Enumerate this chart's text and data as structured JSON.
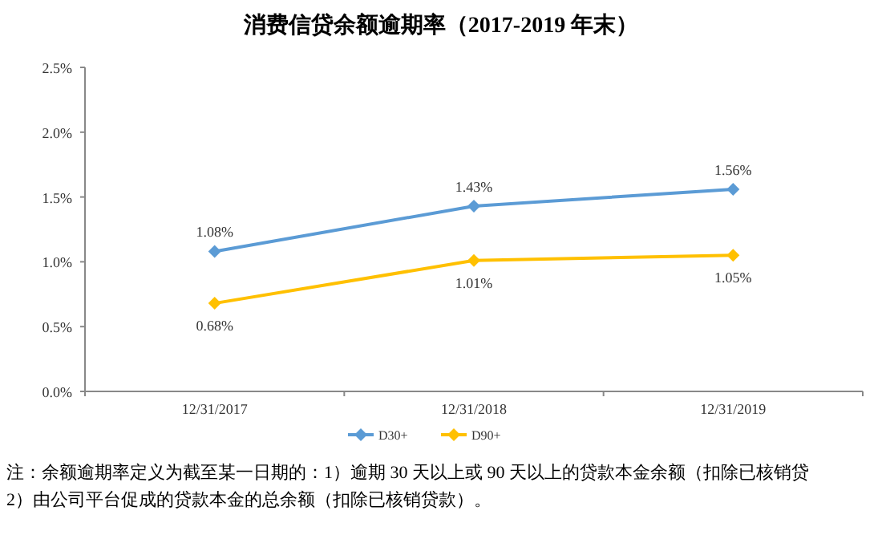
{
  "chart_data": {
    "type": "line",
    "title": "消费信贷余额逾期率（2017-2019 年末）",
    "categories": [
      "12/31/2017",
      "12/31/2018",
      "12/31/2019"
    ],
    "series": [
      {
        "name": "D30+",
        "color": "#5b9bd5",
        "values": [
          1.08,
          1.43,
          1.56
        ],
        "value_labels": [
          "1.08%",
          "1.43%",
          "1.56%"
        ]
      },
      {
        "name": "D90+",
        "color": "#ffc000",
        "values": [
          0.68,
          1.01,
          1.05
        ],
        "value_labels": [
          "0.68%",
          "1.01%",
          "1.05%"
        ]
      }
    ],
    "ylim": [
      0,
      2.5
    ],
    "yticks": [
      {
        "value": 0,
        "label": "0.0%"
      },
      {
        "value": 0.5,
        "label": "0.5%"
      },
      {
        "value": 1.0,
        "label": "1.0%"
      },
      {
        "value": 1.5,
        "label": "1.5%"
      },
      {
        "value": 2.0,
        "label": "2.0%"
      },
      {
        "value": 2.5,
        "label": "2.5%"
      }
    ],
    "legend": "bottom",
    "marker": "diamond",
    "annotations": [
      "注：余额逾期率定义为截至某一日期的：1）逾期 30 天以上或 90 天以上的贷款本金余额（扣除已核销贷",
      "2）由公司平台促成的贷款本金的总余额（扣除已核销贷款）。"
    ]
  }
}
